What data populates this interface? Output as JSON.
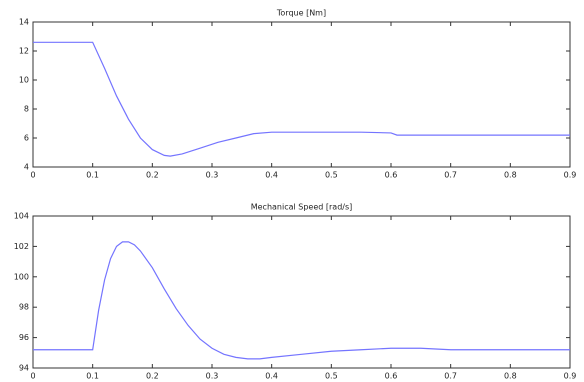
{
  "chart_data": [
    {
      "type": "line",
      "title": "Torque [Nm]",
      "x": [
        0,
        0.1,
        0.12,
        0.14,
        0.16,
        0.18,
        0.2,
        0.22,
        0.23,
        0.25,
        0.28,
        0.31,
        0.34,
        0.37,
        0.4,
        0.45,
        0.5,
        0.55,
        0.6,
        0.61,
        0.7,
        0.8,
        0.9
      ],
      "series": [
        {
          "name": "Torque",
          "color": "#7474ff",
          "values": [
            12.6,
            12.6,
            10.8,
            8.9,
            7.3,
            6.0,
            5.2,
            4.8,
            4.75,
            4.9,
            5.3,
            5.7,
            6.0,
            6.3,
            6.4,
            6.4,
            6.4,
            6.4,
            6.35,
            6.2,
            6.2,
            6.2,
            6.2
          ]
        }
      ],
      "xlim": [
        0,
        0.9
      ],
      "xticks": [
        0,
        0.1,
        0.2,
        0.3,
        0.4,
        0.5,
        0.6,
        0.7,
        0.8,
        0.9
      ],
      "ylim": [
        4,
        14
      ],
      "yticks": [
        4,
        6,
        8,
        10,
        12,
        14
      ]
    },
    {
      "type": "line",
      "title": "Mechanical Speed [rad/s]",
      "x": [
        0,
        0.1,
        0.11,
        0.12,
        0.13,
        0.14,
        0.15,
        0.16,
        0.17,
        0.18,
        0.2,
        0.22,
        0.24,
        0.26,
        0.28,
        0.3,
        0.32,
        0.34,
        0.36,
        0.38,
        0.4,
        0.45,
        0.5,
        0.55,
        0.6,
        0.65,
        0.7,
        0.8,
        0.9
      ],
      "series": [
        {
          "name": "Speed",
          "color": "#7474ff",
          "values": [
            95.2,
            95.2,
            97.8,
            99.8,
            101.2,
            102.0,
            102.3,
            102.3,
            102.1,
            101.7,
            100.6,
            99.2,
            97.9,
            96.8,
            95.9,
            95.3,
            94.9,
            94.7,
            94.6,
            94.6,
            94.7,
            94.9,
            95.1,
            95.2,
            95.3,
            95.3,
            95.2,
            95.2,
            95.2
          ]
        }
      ],
      "xlim": [
        0,
        0.9
      ],
      "xticks": [
        0,
        0.1,
        0.2,
        0.3,
        0.4,
        0.5,
        0.6,
        0.7,
        0.8,
        0.9
      ],
      "ylim": [
        94,
        104
      ],
      "yticks": [
        94,
        96,
        98,
        100,
        102,
        104
      ]
    }
  ]
}
